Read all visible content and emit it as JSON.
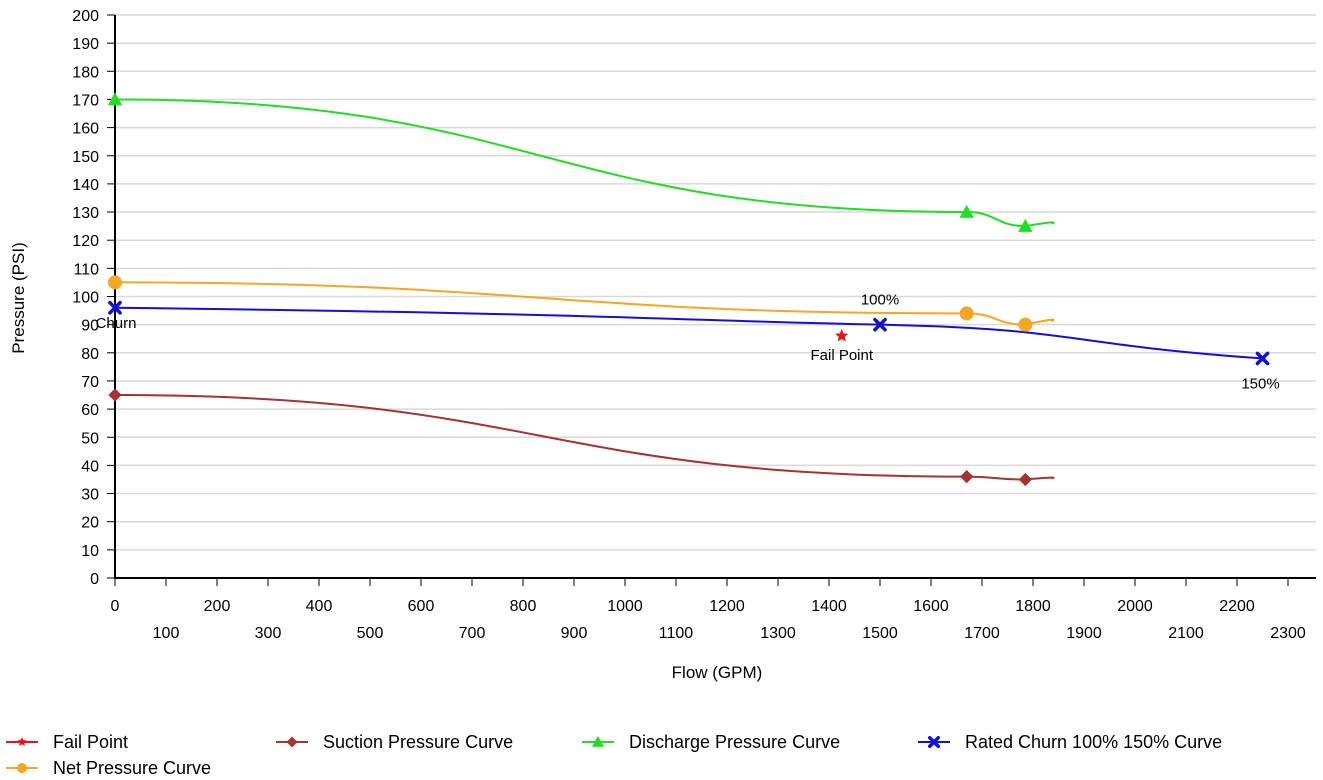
{
  "chart_data": {
    "type": "line",
    "xlabel": "Flow (GPM)",
    "ylabel": "Pressure (PSI)",
    "xlim": [
      0,
      2300
    ],
    "ylim": [
      0,
      200
    ],
    "x_ticks_upper": [
      0,
      200,
      400,
      600,
      800,
      1000,
      1200,
      1400,
      1600,
      1800,
      2000,
      2200
    ],
    "x_ticks_lower": [
      100,
      300,
      500,
      700,
      900,
      1100,
      1300,
      1500,
      1700,
      1900,
      2100,
      2300
    ],
    "y_ticks": [
      0,
      10,
      20,
      30,
      40,
      50,
      60,
      70,
      80,
      90,
      100,
      110,
      120,
      130,
      140,
      150,
      160,
      170,
      180,
      190,
      200
    ],
    "grid": true,
    "legend_position": "bottom",
    "series": [
      {
        "name": "Fail Point",
        "color": "#ee1111",
        "marker": "star",
        "points": [
          [
            1425,
            86
          ]
        ],
        "labels": [
          "Fail Point"
        ]
      },
      {
        "name": "Suction Pressure Curve",
        "color": "#a83232",
        "marker": "diamond",
        "points": [
          [
            0,
            65
          ],
          [
            1670,
            36
          ],
          [
            1785,
            35
          ]
        ]
      },
      {
        "name": "Discharge Pressure Curve",
        "color": "#1fe01f",
        "marker": "triangle",
        "points": [
          [
            0,
            170
          ],
          [
            1670,
            130
          ],
          [
            1785,
            125
          ]
        ]
      },
      {
        "name": "Rated Churn  100%  150% Curve",
        "color": "#1010dd",
        "marker": "x",
        "points": [
          [
            0,
            96
          ],
          [
            1500,
            90
          ],
          [
            2250,
            78
          ]
        ],
        "labels": [
          "Churn",
          "100%",
          "150%"
        ]
      },
      {
        "name": "Net Pressure Curve",
        "color": "#f5a623",
        "marker": "circle",
        "points": [
          [
            0,
            105
          ],
          [
            1670,
            94
          ],
          [
            1785,
            90
          ]
        ]
      }
    ]
  }
}
